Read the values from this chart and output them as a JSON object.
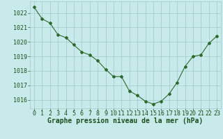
{
  "x": [
    0,
    1,
    2,
    3,
    4,
    5,
    6,
    7,
    8,
    9,
    10,
    11,
    12,
    13,
    14,
    15,
    16,
    17,
    18,
    19,
    20,
    21,
    22,
    23
  ],
  "y": [
    1022.4,
    1021.6,
    1021.3,
    1020.5,
    1020.3,
    1019.8,
    1019.3,
    1019.1,
    1018.7,
    1018.1,
    1017.6,
    1017.6,
    1016.6,
    1016.3,
    1015.9,
    1015.7,
    1015.9,
    1016.4,
    1017.2,
    1018.3,
    1019.0,
    1019.1,
    1019.9,
    1020.4
  ],
  "line_color": "#2d6a2d",
  "marker": "D",
  "marker_size": 2.0,
  "background_color": "#c8eaea",
  "grid_color": "#a0c8c8",
  "xlabel": "Graphe pression niveau de la mer (hPa)",
  "xlabel_color": "#1a4f1a",
  "xlabel_fontsize": 7.0,
  "tick_label_color": "#1a4f1a",
  "tick_fontsize": 6.0,
  "ylim": [
    1015.4,
    1022.8
  ],
  "yticks": [
    1016,
    1017,
    1018,
    1019,
    1020,
    1021,
    1022
  ],
  "xlim": [
    -0.5,
    23.5
  ],
  "xticks": [
    0,
    1,
    2,
    3,
    4,
    5,
    6,
    7,
    8,
    9,
    10,
    11,
    12,
    13,
    14,
    15,
    16,
    17,
    18,
    19,
    20,
    21,
    22,
    23
  ]
}
